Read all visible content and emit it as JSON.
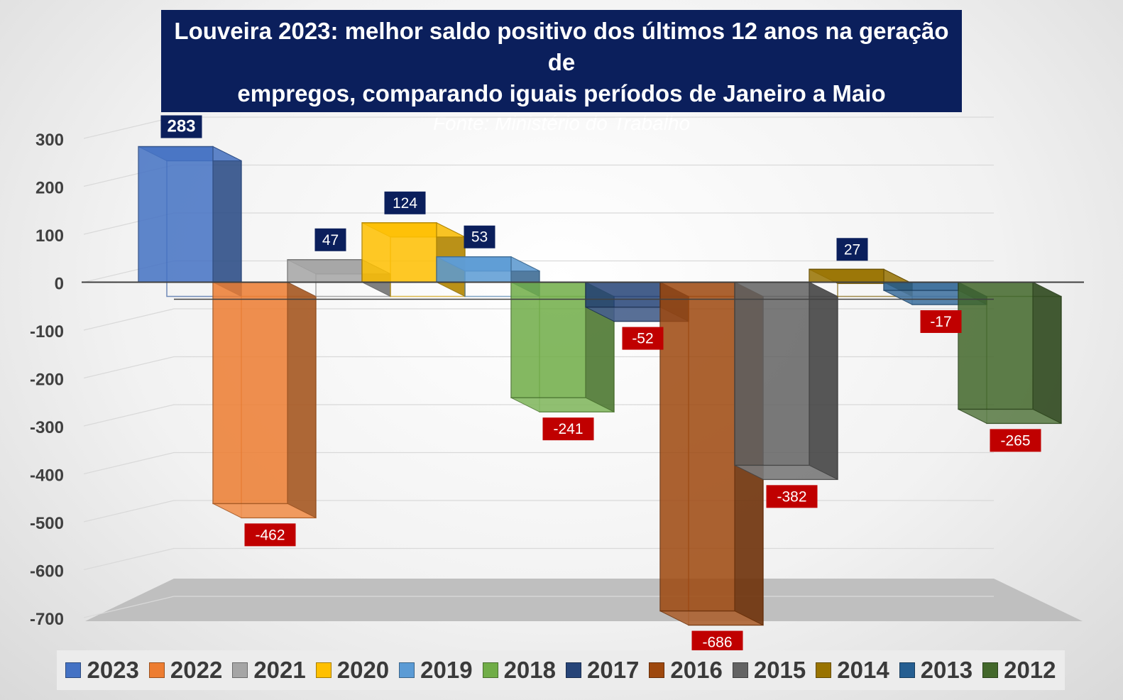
{
  "title": {
    "line1": "Louveira 2023: melhor saldo positivo dos últimos 12 anos na geração de",
    "line2": "empregos, comparando iguais períodos de Janeiro a Maio",
    "source": "Fonte: Ministério do Trabalho"
  },
  "chart_data": {
    "type": "bar",
    "title": "Louveira 2023: melhor saldo positivo dos últimos 12 anos na geração de empregos, comparando iguais períodos de Janeiro a Maio",
    "subtitle": "Fonte: Ministério do Trabalho",
    "categories": [
      "2023",
      "2022",
      "2021",
      "2020",
      "2019",
      "2018",
      "2017",
      "2016",
      "2015",
      "2014",
      "2013",
      "2012"
    ],
    "values": [
      283,
      -462,
      47,
      124,
      53,
      -241,
      -52,
      -686,
      -382,
      27,
      -17,
      -265
    ],
    "data_labels": [
      "283",
      "-462",
      "47",
      "124",
      "53",
      "-241",
      "-52",
      "-686",
      "-382",
      "27",
      "-17",
      "-265"
    ],
    "colors": [
      "#4472c4",
      "#ed7d31",
      "#a5a5a5",
      "#ffc000",
      "#5b9bd5",
      "#70ad47",
      "#264478",
      "#9e480e",
      "#636363",
      "#997300",
      "#255e91",
      "#43682b"
    ],
    "label_positive_bg": "#0b1f5c",
    "label_negative_bg": "#c00000",
    "yticks": [
      "300",
      "200",
      "100",
      "0",
      "-100",
      "-200",
      "-300",
      "-400",
      "-500",
      "-600",
      "-700"
    ],
    "ylim": [
      -700,
      300
    ],
    "grid": true,
    "legend_position": "bottom",
    "xlabel": "",
    "ylabel": ""
  }
}
